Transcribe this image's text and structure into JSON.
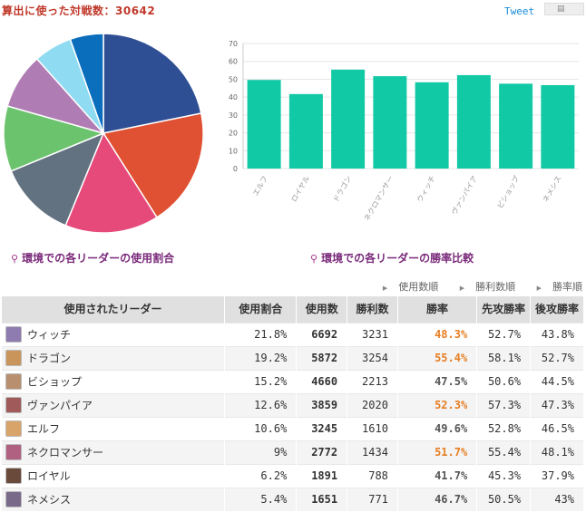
{
  "header": {
    "title": "算出に使った対戦数：30642",
    "tweet_label": "Tweet"
  },
  "captions": {
    "pie": "環境での各リーダーの使用割合",
    "bars": "環境での各リーダーの勝率比較"
  },
  "sort_links": [
    "使用数順",
    "勝利数順",
    "勝率順"
  ],
  "table": {
    "headers": [
      "使用されたリーダー",
      "使用割合",
      "使用数",
      "勝利数",
      "勝率",
      "先攻勝率",
      "後攻勝率"
    ],
    "rows": [
      {
        "leader": "ウィッチ",
        "share": "21.8%",
        "count": "6692",
        "wins": "3231",
        "rate": "48.3%",
        "first": "52.7%",
        "second": "43.8%",
        "avatar_color": "#8e7bb0",
        "rate_color": "#e67e22"
      },
      {
        "leader": "ドラゴン",
        "share": "19.2%",
        "count": "5872",
        "wins": "3254",
        "rate": "55.4%",
        "first": "58.1%",
        "second": "52.7%",
        "avatar_color": "#c9955b",
        "rate_color": "#e67e22"
      },
      {
        "leader": "ビショップ",
        "share": "15.2%",
        "count": "4660",
        "wins": "2213",
        "rate": "47.5%",
        "first": "50.6%",
        "second": "44.5%",
        "avatar_color": "#b89070",
        "rate_color": "#555555"
      },
      {
        "leader": "ヴァンパイア",
        "share": "12.6%",
        "count": "3859",
        "wins": "2020",
        "rate": "52.3%",
        "first": "57.3%",
        "second": "47.3%",
        "avatar_color": "#a05a5a",
        "rate_color": "#e67e22"
      },
      {
        "leader": "エルフ",
        "share": "10.6%",
        "count": "3245",
        "wins": "1610",
        "rate": "49.6%",
        "first": "52.8%",
        "second": "46.5%",
        "avatar_color": "#d9a46a",
        "rate_color": "#555555"
      },
      {
        "leader": "ネクロマンサー",
        "share": "9%",
        "count": "2772",
        "wins": "1434",
        "rate": "51.7%",
        "first": "55.4%",
        "second": "48.1%",
        "avatar_color": "#b06080",
        "rate_color": "#e67e22"
      },
      {
        "leader": "ロイヤル",
        "share": "6.2%",
        "count": "1891",
        "wins": "788",
        "rate": "41.7%",
        "first": "45.3%",
        "second": "37.9%",
        "avatar_color": "#6a4a3a",
        "rate_color": "#555555"
      },
      {
        "leader": "ネメシス",
        "share": "5.4%",
        "count": "1651",
        "wins": "771",
        "rate": "46.7%",
        "first": "50.5%",
        "second": "43%",
        "avatar_color": "#7a6a8a",
        "rate_color": "#555555"
      }
    ]
  },
  "chart_data": [
    {
      "type": "pie",
      "labels": [
        "ウィッチ",
        "ドラゴン",
        "ビショップ",
        "ヴァンパイア",
        "エルフ",
        "ネクロマンサー",
        "ロイヤル",
        "ネメシス"
      ],
      "values": [
        21.8,
        19.2,
        15.2,
        12.6,
        10.6,
        9,
        6.2,
        5.4
      ],
      "colors": [
        "#2f4f94",
        "#e05032",
        "#e64a7a",
        "#627280",
        "#6cc36e",
        "#b07cb4",
        "#8fdbf2",
        "#0a6ebd"
      ]
    },
    {
      "type": "bar",
      "categories": [
        "エルフ",
        "ロイヤル",
        "ドラゴン",
        "ネクロマンサー",
        "ウィッチ",
        "ヴァンパイア",
        "ビショップ",
        "ネメシス"
      ],
      "values": [
        49.6,
        41.7,
        55.4,
        51.7,
        48.3,
        52.3,
        47.5,
        46.7
      ],
      "ylim": [
        0,
        70
      ],
      "yticks": [
        0,
        10,
        20,
        30,
        40,
        50,
        60,
        70
      ],
      "color": "#12c9a6"
    }
  ]
}
